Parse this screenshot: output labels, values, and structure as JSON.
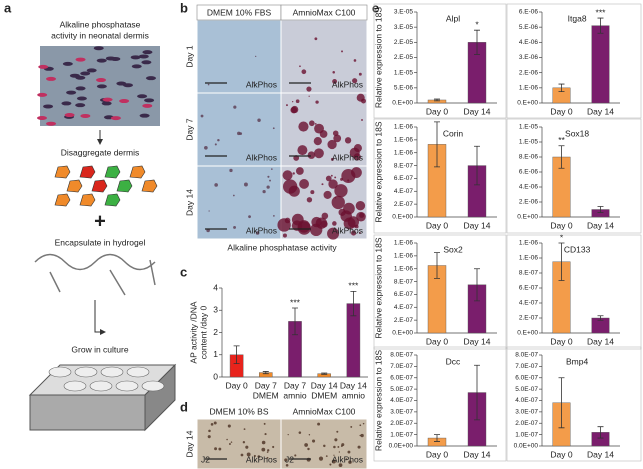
{
  "panels": {
    "a": {
      "letter": "a",
      "steps": [
        "Alkaline phosphatase",
        "activity in neonatal dermis",
        "Disaggregate dermis",
        "Encapsulate in hydrogel",
        "Grow in culture"
      ],
      "plus": "+"
    },
    "b": {
      "letter": "b",
      "columns": [
        "DMEM 10% FBS",
        "AmnioMax C100"
      ],
      "rows": [
        "Day 1",
        "Day 7",
        "Day 14"
      ],
      "stain": [
        "AlkPhos",
        "AlkPhos",
        "AlkPhos",
        "AlkPhos",
        "AlkPhos",
        "AlkPhos"
      ],
      "caption": "Alkaline phosphatase activity"
    },
    "c": {
      "letter": "c"
    },
    "d": {
      "letter": "d",
      "columns": [
        "DMEM 10% BS",
        "AmnioMax C100"
      ],
      "row": "Day 14",
      "cell_line": [
        "J2",
        "J2"
      ],
      "stain": [
        "AlkPhos",
        "AlkPhos"
      ]
    },
    "e": {
      "letter": "e"
    }
  },
  "chart_data": [
    {
      "type": "bar",
      "ylabel": [
        "AP activity /DNA",
        "content /day 0"
      ],
      "categories": [
        [
          "Day 0"
        ],
        [
          "Day 7",
          "DMEM"
        ],
        [
          "Day 7",
          "amnio"
        ],
        [
          "Day 14",
          "DMEM"
        ],
        [
          "Day 14",
          "amnio"
        ]
      ],
      "values": [
        1.0,
        0.2,
        2.5,
        0.15,
        3.3
      ],
      "errors": [
        0.4,
        0.05,
        0.6,
        0.03,
        0.55
      ],
      "colors": [
        "#e8231c",
        "#f08a2a",
        "#7a1e6c",
        "#f08a2a",
        "#7a1e6c"
      ],
      "stars": [
        null,
        null,
        "***",
        null,
        "***"
      ],
      "ylim": [
        0,
        4
      ],
      "yticks": [
        0,
        1,
        2,
        3,
        4
      ]
    },
    {
      "type": "bar",
      "title": "Alpl",
      "ylabel": "Relative expression to 18S",
      "categories": [
        "Day 0",
        "Day 14"
      ],
      "values": [
        1e-06,
        2e-05
      ],
      "errors": [
        3e-07,
        4e-06
      ],
      "colors": [
        "#f39c4a",
        "#7a1e6c"
      ],
      "stars": [
        null,
        "*"
      ],
      "ylim": [
        0,
        3e-05
      ],
      "yticks": [
        {
          "value": 0,
          "label": "0.E+00"
        },
        {
          "value": 5e-06,
          "label": "5.E-06"
        },
        {
          "value": 1e-05,
          "label": "1.E-05"
        },
        {
          "value": 1.5e-05,
          "label": "2.E-05"
        },
        {
          "value": 2e-05,
          "label": "2.E-05"
        },
        {
          "value": 2.5e-05,
          "label": "3.E-05"
        },
        {
          "value": 3e-05,
          "label": "3.E-05"
        }
      ]
    },
    {
      "type": "bar",
      "title": "Itga8",
      "categories": [
        "Day 0",
        "Day 14"
      ],
      "values": [
        1e-06,
        5.1e-06
      ],
      "errors": [
        2.5e-07,
        5e-07
      ],
      "colors": [
        "#f39c4a",
        "#7a1e6c"
      ],
      "stars": [
        null,
        "***"
      ],
      "ylim": [
        0,
        6e-06
      ],
      "yticks": [
        {
          "value": 0,
          "label": "0.E+00"
        },
        {
          "value": 1e-06,
          "label": "1.E-06"
        },
        {
          "value": 2e-06,
          "label": "2.E-06"
        },
        {
          "value": 3e-06,
          "label": "3.E-06"
        },
        {
          "value": 4e-06,
          "label": "4.E-06"
        },
        {
          "value": 5e-06,
          "label": "5.E-06"
        },
        {
          "value": 6e-06,
          "label": "6.E-06"
        }
      ]
    },
    {
      "type": "bar",
      "title": "Corin",
      "ylabel": "Relative expression to 18S",
      "categories": [
        "Day 0",
        "Day 14"
      ],
      "values": [
        1.13e-06,
        8e-07
      ],
      "errors": [
        3.5e-07,
        3e-07
      ],
      "colors": [
        "#f39c4a",
        "#7a1e6c"
      ],
      "stars": [
        null,
        null
      ],
      "ylim": [
        0,
        1.4e-06
      ],
      "yticks": [
        {
          "value": 0,
          "label": "0.E+00"
        },
        {
          "value": 2e-07,
          "label": "2.E-07"
        },
        {
          "value": 4e-07,
          "label": "4.E-07"
        },
        {
          "value": 6e-07,
          "label": "6.E-07"
        },
        {
          "value": 8e-07,
          "label": "8.E-07"
        },
        {
          "value": 1e-06,
          "label": "1.E-06"
        },
        {
          "value": 1.2e-06,
          "label": "1.E-06"
        },
        {
          "value": 1.4e-06,
          "label": "1.E-06"
        }
      ]
    },
    {
      "type": "bar",
      "title": "Sox18",
      "categories": [
        "Day 0",
        "Day 14"
      ],
      "values": [
        8e-06,
        1e-06
      ],
      "errors": [
        1.5e-06,
        4e-07
      ],
      "colors": [
        "#f39c4a",
        "#7a1e6c"
      ],
      "stars": [
        "**",
        null
      ],
      "ylim": [
        0,
        1.2e-05
      ],
      "yticks": [
        {
          "value": 0,
          "label": "0.E+00"
        },
        {
          "value": 2e-06,
          "label": "2.E-06"
        },
        {
          "value": 4e-06,
          "label": "4.E-06"
        },
        {
          "value": 6e-06,
          "label": "6.E-06"
        },
        {
          "value": 8e-06,
          "label": "8.E-06"
        },
        {
          "value": 1e-05,
          "label": "1.E-05"
        },
        {
          "value": 1.2e-05,
          "label": "1.E-05"
        }
      ]
    },
    {
      "type": "bar",
      "title": "Sox2",
      "ylabel": "Relative expression to 18S",
      "categories": [
        "Day 0",
        "Day 14"
      ],
      "values": [
        1.05e-06,
        7.5e-07
      ],
      "errors": [
        2e-07,
        2.5e-07
      ],
      "colors": [
        "#f39c4a",
        "#7a1e6c"
      ],
      "stars": [
        null,
        null
      ],
      "ylim": [
        0,
        1.4e-06
      ],
      "yticks": [
        {
          "value": 0,
          "label": "0.E+00"
        },
        {
          "value": 2e-07,
          "label": "2.E-07"
        },
        {
          "value": 4e-07,
          "label": "4.E-07"
        },
        {
          "value": 6e-07,
          "label": "6.E-07"
        },
        {
          "value": 8e-07,
          "label": "8.E-07"
        },
        {
          "value": 1e-06,
          "label": "1.E-06"
        },
        {
          "value": 1.2e-06,
          "label": "1.E-06"
        },
        {
          "value": 1.4e-06,
          "label": "1.E-06"
        }
      ]
    },
    {
      "type": "bar",
      "title": "CD133",
      "categories": [
        "Day 0",
        "Day 14"
      ],
      "values": [
        9.5e-07,
        2e-07
      ],
      "errors": [
        2.5e-07,
        3e-08
      ],
      "colors": [
        "#f39c4a",
        "#7a1e6c"
      ],
      "stars": [
        "*",
        null
      ],
      "ylim": [
        0,
        1.2e-06
      ],
      "yticks": [
        {
          "value": 0,
          "label": "0.E+00"
        },
        {
          "value": 2e-07,
          "label": "2.E-07"
        },
        {
          "value": 4e-07,
          "label": "4.E-07"
        },
        {
          "value": 6e-07,
          "label": "6.E-07"
        },
        {
          "value": 8e-07,
          "label": "8.E-07"
        },
        {
          "value": 1e-06,
          "label": "1.E-06"
        },
        {
          "value": 1.2e-06,
          "label": "1.E-06"
        }
      ]
    },
    {
      "type": "bar",
      "title": "Dcc",
      "ylabel": "Relative expression to 18S",
      "categories": [
        "Day 0",
        "Day 14"
      ],
      "values": [
        7e-08,
        4.7e-07
      ],
      "errors": [
        3e-08,
        2.4e-07
      ],
      "colors": [
        "#f39c4a",
        "#7a1e6c"
      ],
      "stars": [
        null,
        null
      ],
      "ylim": [
        0,
        8e-07
      ],
      "yticks": [
        {
          "value": 0,
          "label": "0.0E+00"
        },
        {
          "value": 1e-07,
          "label": "1.0E-07"
        },
        {
          "value": 2e-07,
          "label": "2.0E-07"
        },
        {
          "value": 3e-07,
          "label": "3.0E-07"
        },
        {
          "value": 4e-07,
          "label": "4.0E-07"
        },
        {
          "value": 5e-07,
          "label": "5.0E-07"
        },
        {
          "value": 6e-07,
          "label": "6.0E-07"
        },
        {
          "value": 7e-07,
          "label": "7.0E-07"
        },
        {
          "value": 8e-07,
          "label": "8.0E-07"
        }
      ]
    },
    {
      "type": "bar",
      "title": "Bmp4",
      "categories": [
        "Day 0",
        "Day 14"
      ],
      "values": [
        3.8e-07,
        1.2e-07
      ],
      "errors": [
        2.2e-07,
        5e-08
      ],
      "colors": [
        "#f39c4a",
        "#7a1e6c"
      ],
      "stars": [
        null,
        null
      ],
      "ylim": [
        0,
        8e-07
      ],
      "yticks": [
        {
          "value": 0,
          "label": "0.0E+00"
        },
        {
          "value": 1e-07,
          "label": "1.0E-07"
        },
        {
          "value": 2e-07,
          "label": "2.0E-07"
        },
        {
          "value": 3e-07,
          "label": "3.0E-07"
        },
        {
          "value": 4e-07,
          "label": "4.0E-07"
        },
        {
          "value": 5e-07,
          "label": "5.0E-07"
        },
        {
          "value": 6e-07,
          "label": "6.0E-07"
        },
        {
          "value": 7e-07,
          "label": "7.0E-07"
        },
        {
          "value": 8e-07,
          "label": "8.0E-07"
        }
      ]
    }
  ]
}
